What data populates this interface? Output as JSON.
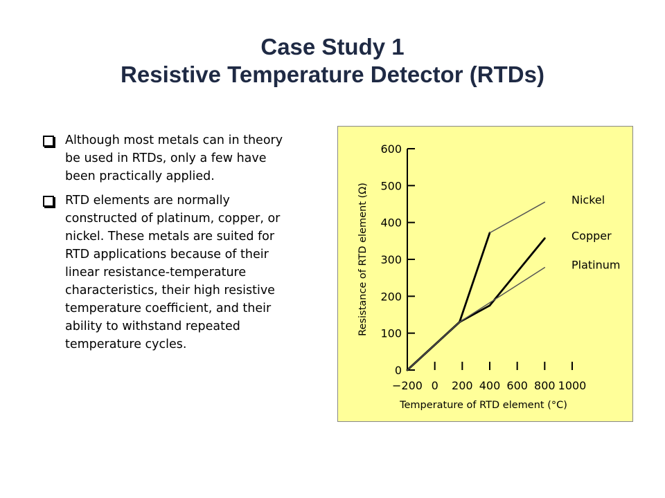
{
  "slide": {
    "title_line1": "Case Study 1",
    "title_line2": "Resistive Temperature Detector (RTDs)",
    "bullets": [
      "Although most metals can in theory be used in RTDs, only a few have been practically applied.",
      "RTD elements are normally constructed of platinum, copper, or nickel. These metals are suited for RTD applications because of their linear resistance-temperature characteristics, their high resistive temperature coefficient, and their ability to withstand repeated temperature cycles."
    ],
    "bullet_icon": "hollow-square-bullet-icon",
    "colors": {
      "title": "#1f2a44",
      "figure_background": "#ffff99",
      "bold_series": "#000000",
      "thin_series": "#555555"
    }
  },
  "chart_data": {
    "type": "line",
    "title": "",
    "xlabel": "Temperature of RTD element (°C)",
    "ylabel": "Resistance of RTD element (Ω)",
    "xlim": [
      -200,
      1000
    ],
    "ylim": [
      0,
      600
    ],
    "xticks": [
      "-200",
      "0",
      "200",
      "400",
      "600",
      "800",
      "1000"
    ],
    "yticks": [
      "0",
      "100",
      "200",
      "300",
      "400",
      "500",
      "600"
    ],
    "grid": false,
    "series": [
      {
        "name": "Nickel",
        "style": "bold-then-thin",
        "points": [
          [
            -200,
            0
          ],
          [
            180,
            130
          ],
          [
            400,
            372
          ],
          [
            800,
            455
          ]
        ]
      },
      {
        "name": "Copper",
        "style": "bold",
        "points": [
          [
            -200,
            0
          ],
          [
            180,
            130
          ],
          [
            400,
            175
          ],
          [
            800,
            357
          ]
        ]
      },
      {
        "name": "Platinum",
        "style": "thin",
        "points": [
          [
            -200,
            0
          ],
          [
            180,
            130
          ],
          [
            800,
            278
          ]
        ]
      }
    ]
  }
}
